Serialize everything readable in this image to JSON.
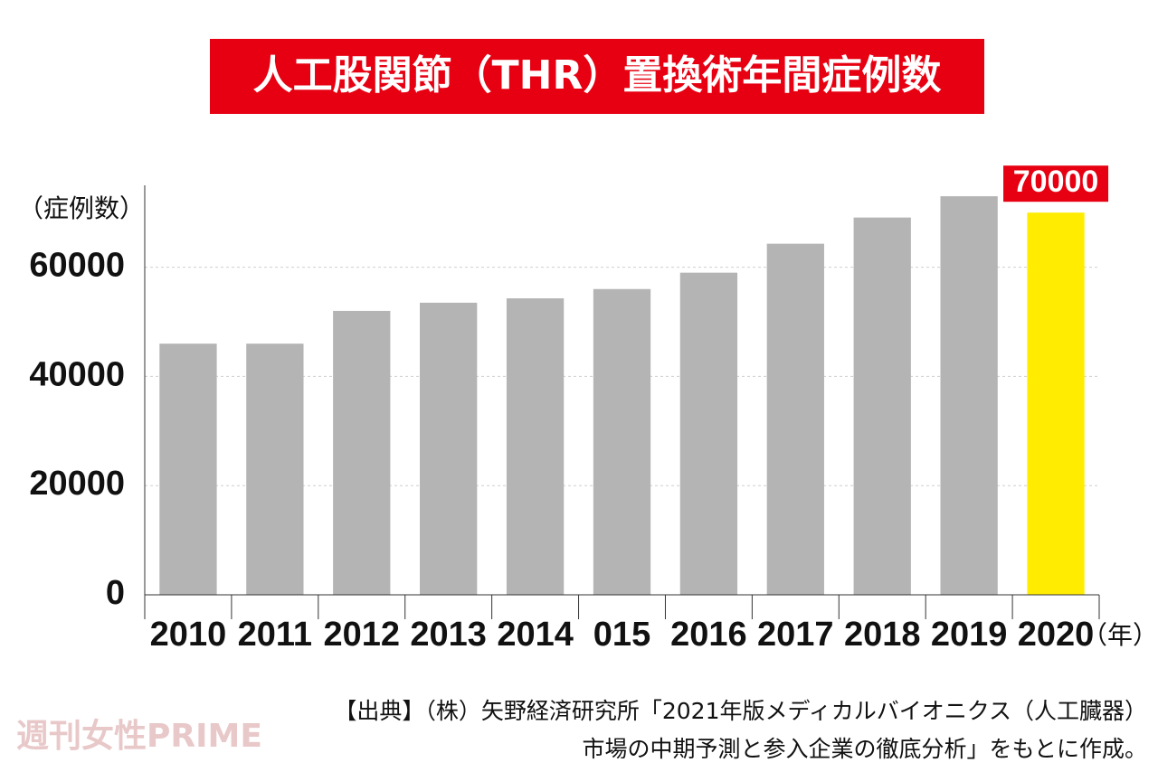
{
  "chart_data": {
    "type": "bar",
    "title": "人工股関節（THR）置換術年間症例数",
    "y_label": "（症例数）",
    "x_label": "（年）",
    "categories": [
      "2010",
      "2011",
      "2012",
      "2013",
      "2014",
      "015",
      "2016",
      "2017",
      "2018",
      "2019",
      "2020"
    ],
    "values": [
      46000,
      46000,
      52000,
      53500,
      54300,
      56000,
      59000,
      64300,
      69100,
      73000,
      70000
    ],
    "colors": [
      "#b4b4b4",
      "#b4b4b4",
      "#b4b4b4",
      "#b4b4b4",
      "#b4b4b4",
      "#b4b4b4",
      "#b4b4b4",
      "#b4b4b4",
      "#b4b4b4",
      "#b4b4b4",
      "#ffec00"
    ],
    "value_labels": [
      null,
      null,
      null,
      null,
      null,
      null,
      null,
      null,
      null,
      null,
      "70000"
    ],
    "ylim": [
      0,
      75000
    ],
    "yticks": [
      0,
      20000,
      40000,
      60000
    ],
    "grid": true,
    "source": [
      "【出典】（株）矢野経済研究所「2021年版メディカルバイオニクス（人工臓器）",
      "市場の中期予測と参入企業の徹底分析」をもとに作成。"
    ],
    "watermark": "週刊女性PRIME"
  }
}
